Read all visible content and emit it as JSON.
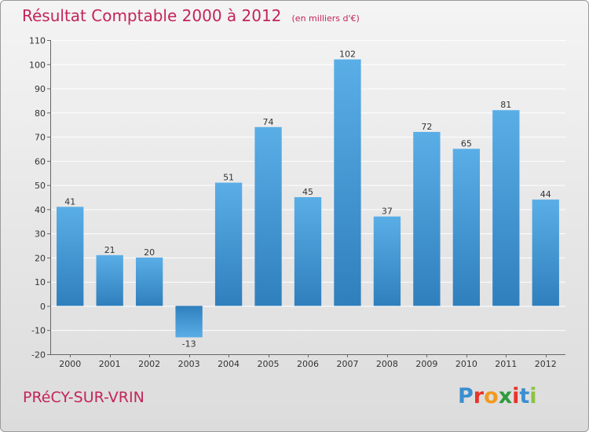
{
  "title": "Résultat Comptable 2000 à 2012",
  "subtitle": "(en milliers d'€)",
  "commune": "PRéCY-SUR-VRIN",
  "logo": {
    "letters": [
      "P",
      "r",
      "o",
      "x",
      "i",
      "t",
      "i"
    ],
    "colors": [
      "#3a8fd0",
      "#e8332a",
      "#f39a1e",
      "#2e9a3e",
      "#e8332a",
      "#3a8fd0",
      "#8dc33f"
    ]
  },
  "colors": {
    "bar_top": "#5aaee6",
    "bar_bottom": "#2f7fbd",
    "title": "#c3245a"
  },
  "chart_data": {
    "type": "bar",
    "title": "Résultat Comptable 2000 à 2012",
    "xlabel": "",
    "ylabel": "",
    "ylim": [
      -20,
      110
    ],
    "yticks": [
      -20,
      -10,
      0,
      10,
      20,
      30,
      40,
      50,
      60,
      70,
      80,
      90,
      100,
      110
    ],
    "categories": [
      "2000",
      "2001",
      "2002",
      "2003",
      "2004",
      "2005",
      "2006",
      "2007",
      "2008",
      "2009",
      "2010",
      "2011",
      "2012"
    ],
    "values": [
      41,
      21,
      20,
      -13,
      51,
      74,
      45,
      102,
      37,
      72,
      65,
      81,
      44
    ],
    "grid": true
  }
}
